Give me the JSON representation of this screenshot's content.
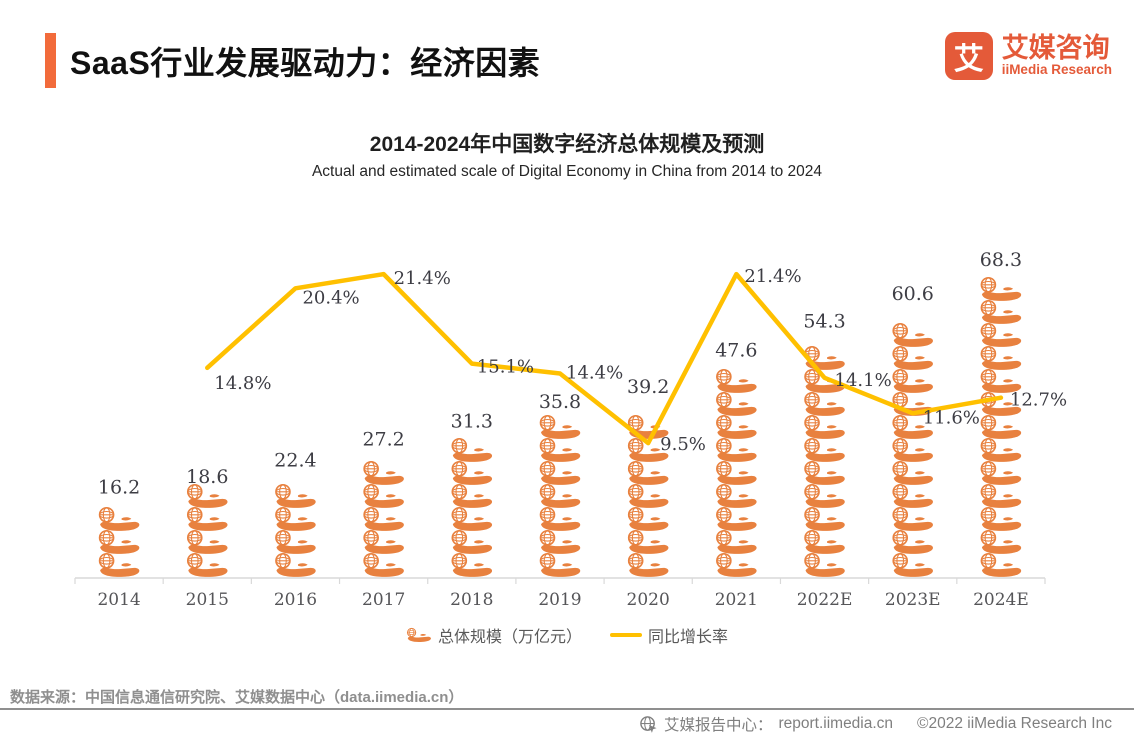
{
  "header": {
    "title": "SaaS行业发展驱动力：经济因素"
  },
  "logo": {
    "mark": "艾",
    "name_cn": "艾媒咨询",
    "name_en": "iiMedia Research"
  },
  "chart_data": {
    "type": "bar",
    "title": "2014-2024年中国数字经济总体规模及预测",
    "subtitle": "Actual and estimated scale of Digital Economy in China  from 2014 to 2024",
    "categories": [
      "2014",
      "2015",
      "2016",
      "2017",
      "2018",
      "2019",
      "2020",
      "2021",
      "2022E",
      "2023E",
      "2024E"
    ],
    "series": [
      {
        "name": "总体规模（万亿元）",
        "type": "bar",
        "unit": "万亿元",
        "values": [
          16.2,
          18.6,
          22.4,
          27.2,
          31.3,
          35.8,
          39.2,
          47.6,
          54.3,
          60.6,
          68.3
        ]
      },
      {
        "name": "同比增长率",
        "type": "line",
        "values": [
          null,
          14.8,
          20.4,
          21.4,
          15.1,
          14.4,
          9.5,
          21.4,
          14.1,
          11.6,
          12.7
        ],
        "labels": [
          null,
          "14.8%",
          "20.4%",
          "21.4%",
          "15.1%",
          "14.4%",
          "9.5%",
          "21.4%",
          "14.1%",
          "11.6%",
          "12.7%"
        ]
      }
    ],
    "legend_position": "bottom",
    "grid": false,
    "bar_axis_range": [
      0,
      75
    ],
    "line_axis_range": [
      0,
      30
    ]
  },
  "legend": {
    "bar_label": "总体规模（万亿元）",
    "line_label": "同比增长率"
  },
  "source": "数据来源：中国信息通信研究院、艾媒数据中心（data.iimedia.cn）",
  "footer": {
    "report_center": "艾媒报告中心：",
    "url": "report.iimedia.cn",
    "copyright": "©2022 iiMedia Research Inc"
  },
  "colors": {
    "accent_orange": "#F26B3B",
    "logo_orange": "#E45A39",
    "icon_orange": "#E8813F",
    "line_yellow": "#FFC000",
    "label_dark": "#3d3d44",
    "axis_gray": "#D9D9D9",
    "text_gray": "#8f8f8f"
  }
}
